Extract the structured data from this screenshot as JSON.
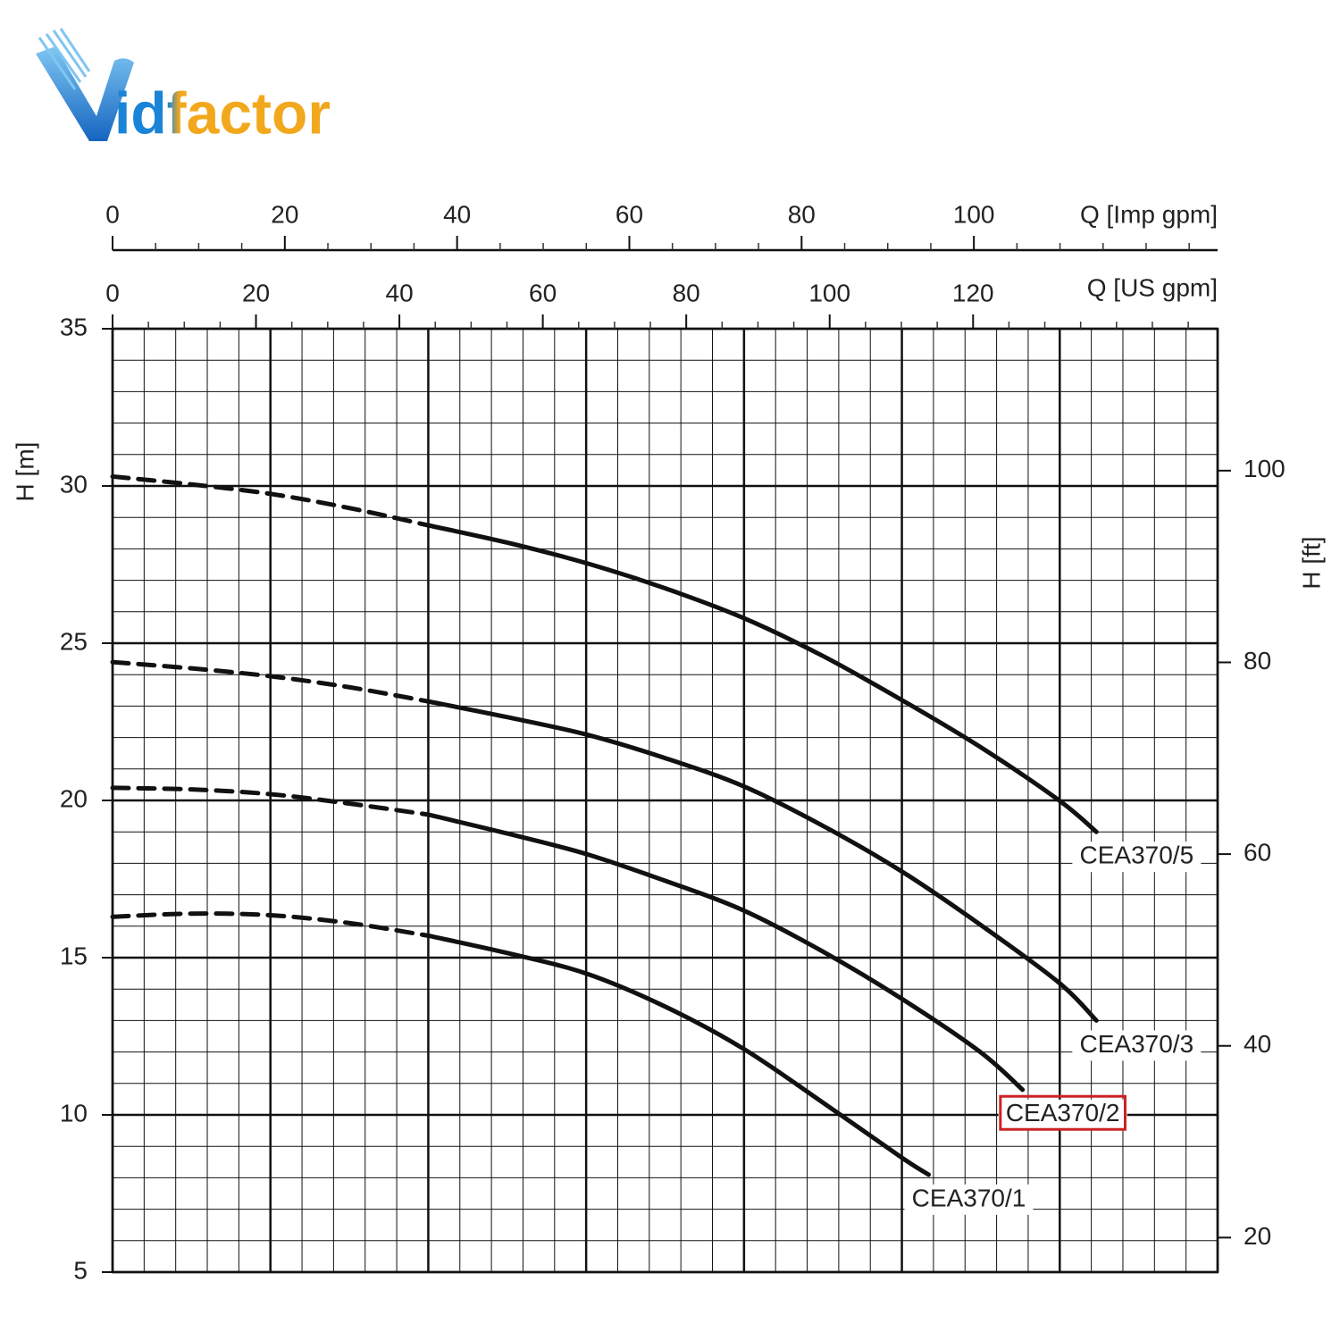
{
  "logo": {
    "text": "idfactor"
  },
  "chart_data": {
    "type": "line",
    "xlabel": "Q [US gpm]",
    "xlim": [
      0,
      154.1
    ],
    "xticks": [
      0,
      20,
      40,
      60,
      80,
      100,
      120
    ],
    "xminor": 5,
    "x2label": "Q [Imp gpm]",
    "x2lim": [
      0,
      128.3
    ],
    "x2ticks": [
      0,
      20,
      40,
      60,
      80,
      100
    ],
    "x2minor": 5,
    "ylabel": "H [m]",
    "ylim": [
      5,
      35
    ],
    "yticks": [
      5,
      10,
      15,
      20,
      25,
      30,
      35
    ],
    "y2label": "H [ft]",
    "y2lim": [
      16.4,
      114.8
    ],
    "y2ticks": [
      20,
      40,
      60,
      80,
      100
    ],
    "grid": {
      "x_divisions": 35,
      "x_major_every": 5,
      "y_divisions": 30,
      "y_major_every": 5
    },
    "dashed_until_x": 44,
    "series": [
      {
        "name": "CEA370/5",
        "color": "#111111",
        "x": [
          0,
          11,
          22,
          33,
          44,
          55,
          66,
          77,
          88,
          99,
          110,
          121,
          132,
          137.2
        ],
        "values": [
          30.3,
          30.05,
          29.75,
          29.3,
          28.75,
          28.2,
          27.55,
          26.75,
          25.8,
          24.6,
          23.2,
          21.7,
          20.0,
          19.0
        ]
      },
      {
        "name": "CEA370/3",
        "color": "#111111",
        "x": [
          0,
          11,
          22,
          33,
          44,
          55,
          66,
          77,
          88,
          99,
          110,
          121,
          132,
          137.2
        ],
        "values": [
          24.4,
          24.2,
          23.95,
          23.6,
          23.15,
          22.65,
          22.1,
          21.35,
          20.45,
          19.2,
          17.75,
          16.05,
          14.2,
          13.0
        ]
      },
      {
        "name": "CEA370/2",
        "color": "#111111",
        "highlight_color": "#cc2222",
        "x": [
          0,
          11,
          22,
          33,
          44,
          55,
          66,
          77,
          88,
          99,
          110,
          121,
          126.9
        ],
        "values": [
          20.4,
          20.35,
          20.2,
          19.9,
          19.55,
          18.95,
          18.3,
          17.45,
          16.5,
          15.2,
          13.7,
          12.0,
          10.8
        ]
      },
      {
        "name": "CEA370/1",
        "color": "#111111",
        "x": [
          0,
          11,
          22,
          33,
          44,
          55,
          66,
          77,
          88,
          99,
          110,
          113.8
        ],
        "values": [
          16.3,
          16.4,
          16.35,
          16.1,
          15.7,
          15.15,
          14.5,
          13.45,
          12.1,
          10.4,
          8.65,
          8.1
        ]
      }
    ]
  }
}
